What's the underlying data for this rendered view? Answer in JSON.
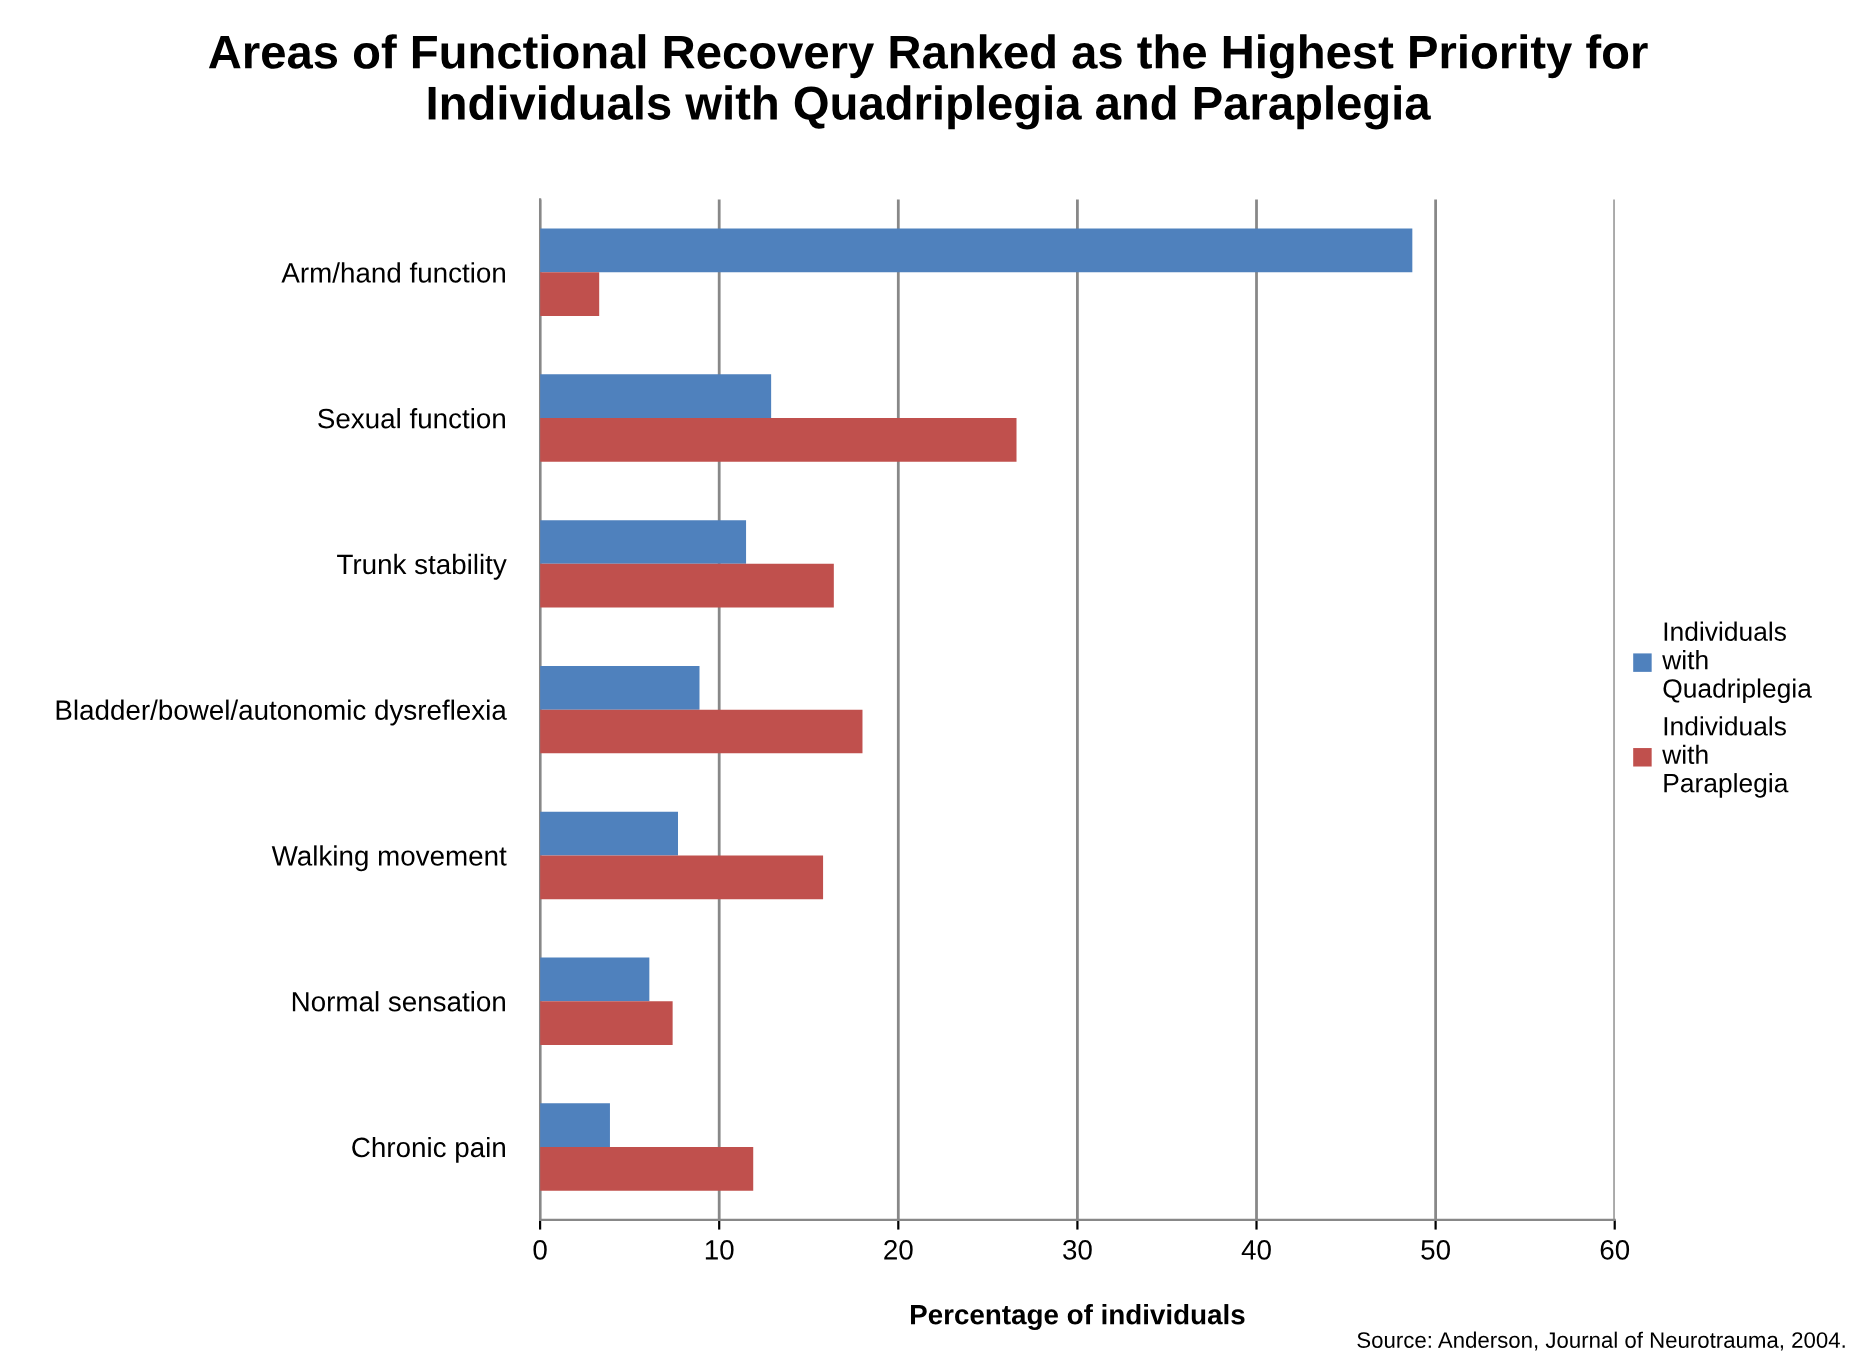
{
  "chart_data": {
    "type": "bar",
    "orientation": "horizontal",
    "title": "Areas of Functional Recovery Ranked as the Highest Priority for\nIndividuals with Quadriplegia and Paraplegia",
    "xlabel": "Percentage of individuals",
    "categories": [
      "Arm/hand function",
      "Sexual function",
      "Trunk stability",
      "Bladder/bowel/autonomic dysreflexia",
      "Walking movement",
      "Normal sensation",
      "Chronic pain"
    ],
    "series": [
      {
        "name": "Individuals with Quadriplegia",
        "color": "#4f81bd",
        "values": [
          48.7,
          12.9,
          11.5,
          8.9,
          7.7,
          6.1,
          3.9
        ]
      },
      {
        "name": "Individuals with Paraplegia",
        "color": "#c0504d",
        "values": [
          3.3,
          26.6,
          16.4,
          18.0,
          15.8,
          7.4,
          11.9
        ]
      }
    ],
    "xlim": [
      0,
      60
    ],
    "xticks": [
      0,
      10,
      20,
      30,
      40,
      50,
      60
    ],
    "grid": "x",
    "legend": "right",
    "annotations": [
      "Source: Anderson, Journal of Neurotrauma, 2004."
    ]
  }
}
